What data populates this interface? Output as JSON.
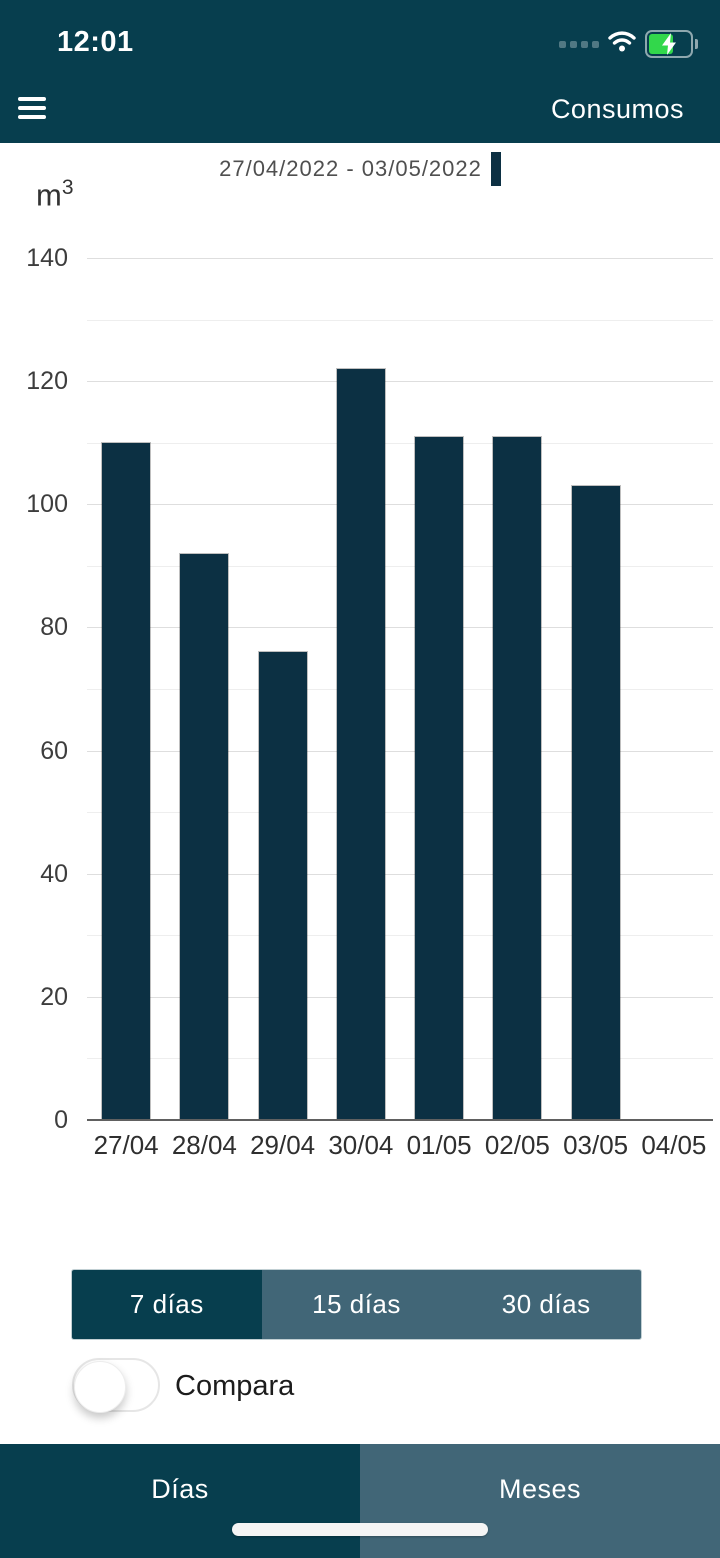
{
  "colors": {
    "teal_dark": "#073e4e",
    "bar_navy": "#0c3043",
    "slate": "#416677",
    "battery_green": "#32d74b",
    "grid_major": "#dedede",
    "grid_minor": "#eeeeee"
  },
  "status_bar": {
    "time": "12:01",
    "cell_dots": 4,
    "battery_level_percent": 55,
    "charging": true
  },
  "header": {
    "title": "Consumos",
    "menu_icon": "hamburger-icon"
  },
  "chart_data": {
    "type": "bar",
    "legend": [
      {
        "label": "27/04/2022 - 03/05/2022",
        "marker_color": "#0c3043"
      }
    ],
    "legend_position": "top",
    "unit_base": "m",
    "unit_exponent": "3",
    "categories": [
      "27/04",
      "28/04",
      "29/04",
      "30/04",
      "01/05",
      "02/05",
      "03/05",
      "04/05"
    ],
    "values": [
      110,
      92,
      76,
      122,
      111,
      111,
      103,
      null
    ],
    "ylim": [
      0,
      140
    ],
    "ytick_step": 20,
    "minor_grid_step": 10,
    "grid": true,
    "bar_color": "#0c3043"
  },
  "range_selector": {
    "options": [
      {
        "label": "7 días",
        "selected": true
      },
      {
        "label": "15 días",
        "selected": false
      },
      {
        "label": "30 días",
        "selected": false
      }
    ]
  },
  "compare": {
    "label": "Compara",
    "enabled": false
  },
  "tab_bar": {
    "tabs": [
      {
        "label": "Días",
        "selected": true
      },
      {
        "label": "Meses",
        "selected": false
      }
    ]
  }
}
